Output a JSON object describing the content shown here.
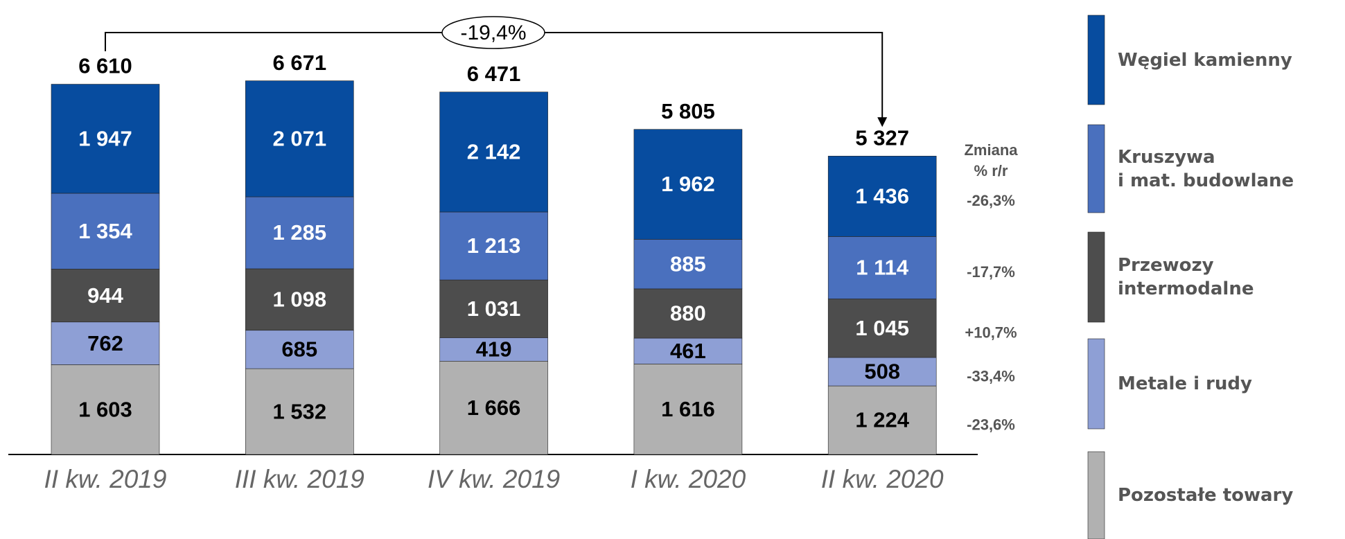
{
  "chart_data": {
    "type": "stacked_bar",
    "categories": [
      "II kw. 2019",
      "III kw. 2019",
      "IV kw. 2019",
      "I kw. 2020",
      "II kw. 2020"
    ],
    "series": [
      {
        "name": "Pozostałe towary",
        "color": "#b1b1b1",
        "label_color": "#000000",
        "values": [
          1603,
          1532,
          1666,
          1616,
          1224
        ],
        "value_labels": [
          "1 603",
          "1 532",
          "1 666",
          "1 616",
          "1 224"
        ],
        "change": -23.6,
        "change_label": "-23,6%"
      },
      {
        "name": "Metale i rudy",
        "color": "#8e9fd5",
        "label_color": "#000000",
        "values": [
          762,
          685,
          419,
          461,
          508
        ],
        "value_labels": [
          "762",
          "685",
          "419",
          "461",
          "508"
        ],
        "change": -33.4,
        "change_label": "-33,4%"
      },
      {
        "name": "Przewozy intermodalne",
        "color": "#4d4d4d",
        "label_color": "#ffffff",
        "values": [
          944,
          1098,
          1031,
          880,
          1045
        ],
        "value_labels": [
          "944",
          "1 098",
          "1 031",
          "880",
          "1 045"
        ],
        "change": 10.7,
        "change_label": "+10,7%"
      },
      {
        "name": "Kruszywa\ni mat. budowlane",
        "color": "#4a70be",
        "label_color": "#ffffff",
        "values": [
          1354,
          1285,
          1213,
          885,
          1114
        ],
        "value_labels": [
          "1 354",
          "1 285",
          "1 213",
          "885",
          "1 114"
        ],
        "change": -17.7,
        "change_label": "-17,7%"
      },
      {
        "name": "Węgiel kamienny",
        "color": "#074c9f",
        "label_color": "#ffffff",
        "values": [
          1947,
          2071,
          2142,
          1962,
          1436
        ],
        "value_labels": [
          "1 947",
          "2 071",
          "2 142",
          "1 962",
          "1 436"
        ],
        "change": -26.3,
        "change_label": "-26,3%"
      }
    ],
    "totals": [
      6610,
      6671,
      6471,
      5805,
      5327
    ],
    "total_labels": [
      "6 610",
      "6 671",
      "6 471",
      "5 805",
      "5 327"
    ],
    "change_title": "Zmiana\n% r/r",
    "annotation": {
      "value": -19.4,
      "label": "-19,4%"
    },
    "ylim": [
      0,
      7000
    ]
  }
}
